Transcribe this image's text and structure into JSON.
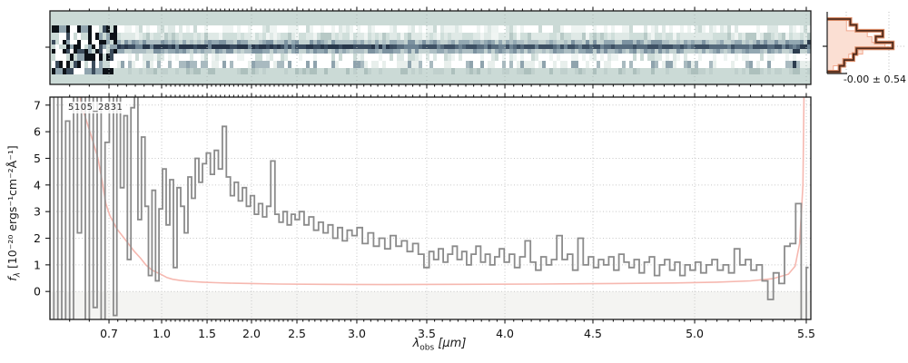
{
  "object_id": "5105_2831",
  "histogram": {
    "stat_label": "-0.00 ± 0.54",
    "relative_bin_widths_line": [
      0.3,
      0.38,
      0.72,
      0.63,
      0.85,
      0.38,
      0.34,
      0.22,
      0.16
    ],
    "relative_bin_widths_fill": [
      0.25,
      0.25,
      0.52,
      0.58,
      0.75,
      0.46,
      0.28,
      0.22,
      0.08
    ],
    "orientation": "horizontal",
    "line_color": "#4f2a1b",
    "glow_color": "#d98a66",
    "fill_color": "#fbdfd3",
    "fill_edge_color": "#f2a88e"
  },
  "panel_2d": {
    "description": "2D rectified spectrum image, dark trace along center row, noisy blue-gray columns, high-contrast noise at blue end",
    "background": "#cbdad6",
    "noise_seed": 7
  },
  "chart_data": {
    "type": "line",
    "title": "5105_2831",
    "xlabel": "λ_obs [μm]",
    "ylabel": "f_λ [10⁻²⁰ ergs⁻¹cm⁻²Å⁻¹]",
    "xlabel_parts": {
      "symbol": "λ",
      "sub": "obs",
      "unit": " [μm]"
    },
    "ylabel_parts": {
      "symbol": "f",
      "sub": "λ",
      "unit": " [10⁻²⁰ ergs⁻¹cm⁻²Å⁻¹]"
    },
    "xlim": [
      0.55,
      5.52
    ],
    "ylim": [
      -1.05,
      7.3
    ],
    "x_scale": "nonlinear (NIRSpec prism detector-pixel spacing)",
    "x_axis_mapping_anchors": [
      [
        0.55,
        0.0
      ],
      [
        0.7,
        0.0776
      ],
      [
        1.0,
        0.1468
      ],
      [
        1.5,
        0.2065
      ],
      [
        2.0,
        0.2649
      ],
      [
        2.5,
        0.3246
      ],
      [
        3.0,
        0.4033
      ],
      [
        3.5,
        0.4952
      ],
      [
        4.0,
        0.5979
      ],
      [
        4.5,
        0.7136
      ],
      [
        5.0,
        0.8473
      ],
      [
        5.5,
        0.994
      ],
      [
        5.52,
        1.0
      ]
    ],
    "x_ticks": [
      0.7,
      1.0,
      1.5,
      2.0,
      2.5,
      3.0,
      3.5,
      4.0,
      4.5,
      5.0,
      5.5
    ],
    "x_tick_labels": [
      "0.7",
      "1.0",
      "1.5",
      "2.0",
      "2.5",
      "3.0",
      "3.5",
      "4.0",
      "4.5",
      "5.0",
      "5.5"
    ],
    "x_minor_tick_step": 0.05,
    "y_ticks": [
      0,
      1,
      2,
      3,
      4,
      5,
      6,
      7
    ],
    "y_tick_labels": [
      "0",
      "1",
      "2",
      "3",
      "4",
      "5",
      "6",
      "7"
    ],
    "grid": "dotted major gridlines both axes",
    "legend": "none",
    "series": [
      {
        "name": "flux",
        "style": "steps-mid",
        "color": "#8b8b8b",
        "points": [
          [
            0.555,
            7.6
          ],
          [
            0.565,
            -1.3
          ],
          [
            0.575,
            7.6
          ],
          [
            0.585,
            -1.3
          ],
          [
            0.595,
            6.4
          ],
          [
            0.605,
            -1.3
          ],
          [
            0.615,
            7.6
          ],
          [
            0.625,
            2.2
          ],
          [
            0.635,
            7.6
          ],
          [
            0.645,
            -1.3
          ],
          [
            0.655,
            7.6
          ],
          [
            0.665,
            -0.6
          ],
          [
            0.675,
            7.6
          ],
          [
            0.685,
            -1.3
          ],
          [
            0.695,
            5.6
          ],
          [
            0.715,
            7.6
          ],
          [
            0.735,
            -0.9
          ],
          [
            0.755,
            7.6
          ],
          [
            0.775,
            3.9
          ],
          [
            0.795,
            6.6
          ],
          [
            0.815,
            1.2
          ],
          [
            0.835,
            6.9
          ],
          [
            0.855,
            7.6
          ],
          [
            0.875,
            2.7
          ],
          [
            0.895,
            5.8
          ],
          [
            0.915,
            3.2
          ],
          [
            0.935,
            0.6
          ],
          [
            0.955,
            3.8
          ],
          [
            0.975,
            0.4
          ],
          [
            0.995,
            3.1
          ],
          [
            1.03,
            4.6
          ],
          [
            1.07,
            2.5
          ],
          [
            1.11,
            4.2
          ],
          [
            1.15,
            0.9
          ],
          [
            1.19,
            3.9
          ],
          [
            1.23,
            3.2
          ],
          [
            1.27,
            2.2
          ],
          [
            1.31,
            4.3
          ],
          [
            1.35,
            3.5
          ],
          [
            1.39,
            5.0
          ],
          [
            1.43,
            4.1
          ],
          [
            1.47,
            4.8
          ],
          [
            1.515,
            5.2
          ],
          [
            1.56,
            4.4
          ],
          [
            1.605,
            5.3
          ],
          [
            1.65,
            4.6
          ],
          [
            1.695,
            6.2
          ],
          [
            1.74,
            4.3
          ],
          [
            1.785,
            3.6
          ],
          [
            1.83,
            4.1
          ],
          [
            1.875,
            3.4
          ],
          [
            1.92,
            3.9
          ],
          [
            1.965,
            3.2
          ],
          [
            2.01,
            3.6
          ],
          [
            2.055,
            2.9
          ],
          [
            2.1,
            3.3
          ],
          [
            2.145,
            2.8
          ],
          [
            2.19,
            3.2
          ],
          [
            2.235,
            4.9
          ],
          [
            2.28,
            2.9
          ],
          [
            2.325,
            2.6
          ],
          [
            2.37,
            3.0
          ],
          [
            2.415,
            2.5
          ],
          [
            2.46,
            2.9
          ],
          [
            2.5,
            2.7
          ],
          [
            2.54,
            3.0
          ],
          [
            2.58,
            2.5
          ],
          [
            2.62,
            2.8
          ],
          [
            2.66,
            2.3
          ],
          [
            2.7,
            2.6
          ],
          [
            2.74,
            2.2
          ],
          [
            2.78,
            2.5
          ],
          [
            2.82,
            2.0
          ],
          [
            2.86,
            2.4
          ],
          [
            2.9,
            1.9
          ],
          [
            2.94,
            2.3
          ],
          [
            2.98,
            2.1
          ],
          [
            3.02,
            2.4
          ],
          [
            3.06,
            1.8
          ],
          [
            3.1,
            2.2
          ],
          [
            3.14,
            1.7
          ],
          [
            3.18,
            2.0
          ],
          [
            3.22,
            1.6
          ],
          [
            3.26,
            2.1
          ],
          [
            3.3,
            1.7
          ],
          [
            3.34,
            1.9
          ],
          [
            3.38,
            1.5
          ],
          [
            3.42,
            1.8
          ],
          [
            3.46,
            1.4
          ],
          [
            3.5,
            0.9
          ],
          [
            3.53,
            1.5
          ],
          [
            3.56,
            1.2
          ],
          [
            3.59,
            1.6
          ],
          [
            3.62,
            1.1
          ],
          [
            3.65,
            1.4
          ],
          [
            3.68,
            1.7
          ],
          [
            3.71,
            1.2
          ],
          [
            3.74,
            1.5
          ],
          [
            3.77,
            1.0
          ],
          [
            3.8,
            1.4
          ],
          [
            3.83,
            1.7
          ],
          [
            3.86,
            1.1
          ],
          [
            3.89,
            1.4
          ],
          [
            3.92,
            1.0
          ],
          [
            3.95,
            1.3
          ],
          [
            3.98,
            1.6
          ],
          [
            4.01,
            1.1
          ],
          [
            4.04,
            1.4
          ],
          [
            4.07,
            0.9
          ],
          [
            4.1,
            1.3
          ],
          [
            4.13,
            1.9
          ],
          [
            4.16,
            1.1
          ],
          [
            4.19,
            0.8
          ],
          [
            4.22,
            1.3
          ],
          [
            4.25,
            1.0
          ],
          [
            4.28,
            1.2
          ],
          [
            4.31,
            2.1
          ],
          [
            4.34,
            1.2
          ],
          [
            4.37,
            1.4
          ],
          [
            4.4,
            0.8
          ],
          [
            4.43,
            2.0
          ],
          [
            4.46,
            1.0
          ],
          [
            4.49,
            1.3
          ],
          [
            4.515,
            0.9
          ],
          [
            4.54,
            1.2
          ],
          [
            4.565,
            1.0
          ],
          [
            4.59,
            1.3
          ],
          [
            4.615,
            0.8
          ],
          [
            4.64,
            1.4
          ],
          [
            4.665,
            1.1
          ],
          [
            4.69,
            0.9
          ],
          [
            4.715,
            1.2
          ],
          [
            4.74,
            0.7
          ],
          [
            4.765,
            1.1
          ],
          [
            4.79,
            1.3
          ],
          [
            4.815,
            0.6
          ],
          [
            4.84,
            1.0
          ],
          [
            4.865,
            1.2
          ],
          [
            4.89,
            0.8
          ],
          [
            4.915,
            1.1
          ],
          [
            4.94,
            0.6
          ],
          [
            4.965,
            1.0
          ],
          [
            4.99,
            0.8
          ],
          [
            5.015,
            1.1
          ],
          [
            5.04,
            0.7
          ],
          [
            5.065,
            1.0
          ],
          [
            5.09,
            1.2
          ],
          [
            5.115,
            0.8
          ],
          [
            5.14,
            1.0
          ],
          [
            5.165,
            0.7
          ],
          [
            5.19,
            1.6
          ],
          [
            5.215,
            1.0
          ],
          [
            5.24,
            1.2
          ],
          [
            5.265,
            0.8
          ],
          [
            5.29,
            1.0
          ],
          [
            5.315,
            0.4
          ],
          [
            5.34,
            -0.3
          ],
          [
            5.365,
            0.7
          ],
          [
            5.39,
            0.3
          ],
          [
            5.415,
            1.7
          ],
          [
            5.44,
            1.8
          ],
          [
            5.465,
            3.3
          ],
          [
            5.49,
            -1.3
          ],
          [
            5.51,
            0.9
          ]
        ]
      },
      {
        "name": "uncertainty",
        "style": "line",
        "color": "#f6b8b0",
        "points": [
          [
            0.61,
            9
          ],
          [
            0.63,
            7.0
          ],
          [
            0.645,
            6.3
          ],
          [
            0.66,
            5.6
          ],
          [
            0.672,
            5.0
          ],
          [
            0.682,
            4.2
          ],
          [
            0.692,
            3.3
          ],
          [
            0.705,
            2.85
          ],
          [
            0.725,
            2.6
          ],
          [
            0.745,
            2.35
          ],
          [
            0.775,
            2.1
          ],
          [
            0.81,
            1.8
          ],
          [
            0.845,
            1.5
          ],
          [
            0.88,
            1.25
          ],
          [
            0.91,
            1.0
          ],
          [
            0.945,
            0.8
          ],
          [
            1.0,
            0.63
          ],
          [
            1.06,
            0.52
          ],
          [
            1.12,
            0.46
          ],
          [
            1.2,
            0.42
          ],
          [
            1.3,
            0.38
          ],
          [
            1.45,
            0.35
          ],
          [
            1.6,
            0.33
          ],
          [
            1.8,
            0.31
          ],
          [
            2.0,
            0.3
          ],
          [
            2.3,
            0.28
          ],
          [
            2.7,
            0.27
          ],
          [
            3.2,
            0.26
          ],
          [
            3.7,
            0.27
          ],
          [
            4.2,
            0.28
          ],
          [
            4.6,
            0.3
          ],
          [
            4.9,
            0.32
          ],
          [
            5.1,
            0.35
          ],
          [
            5.25,
            0.4
          ],
          [
            5.35,
            0.48
          ],
          [
            5.42,
            0.65
          ],
          [
            5.45,
            0.95
          ],
          [
            5.47,
            1.8
          ],
          [
            5.485,
            4.0
          ],
          [
            5.492,
            9
          ]
        ]
      }
    ]
  }
}
